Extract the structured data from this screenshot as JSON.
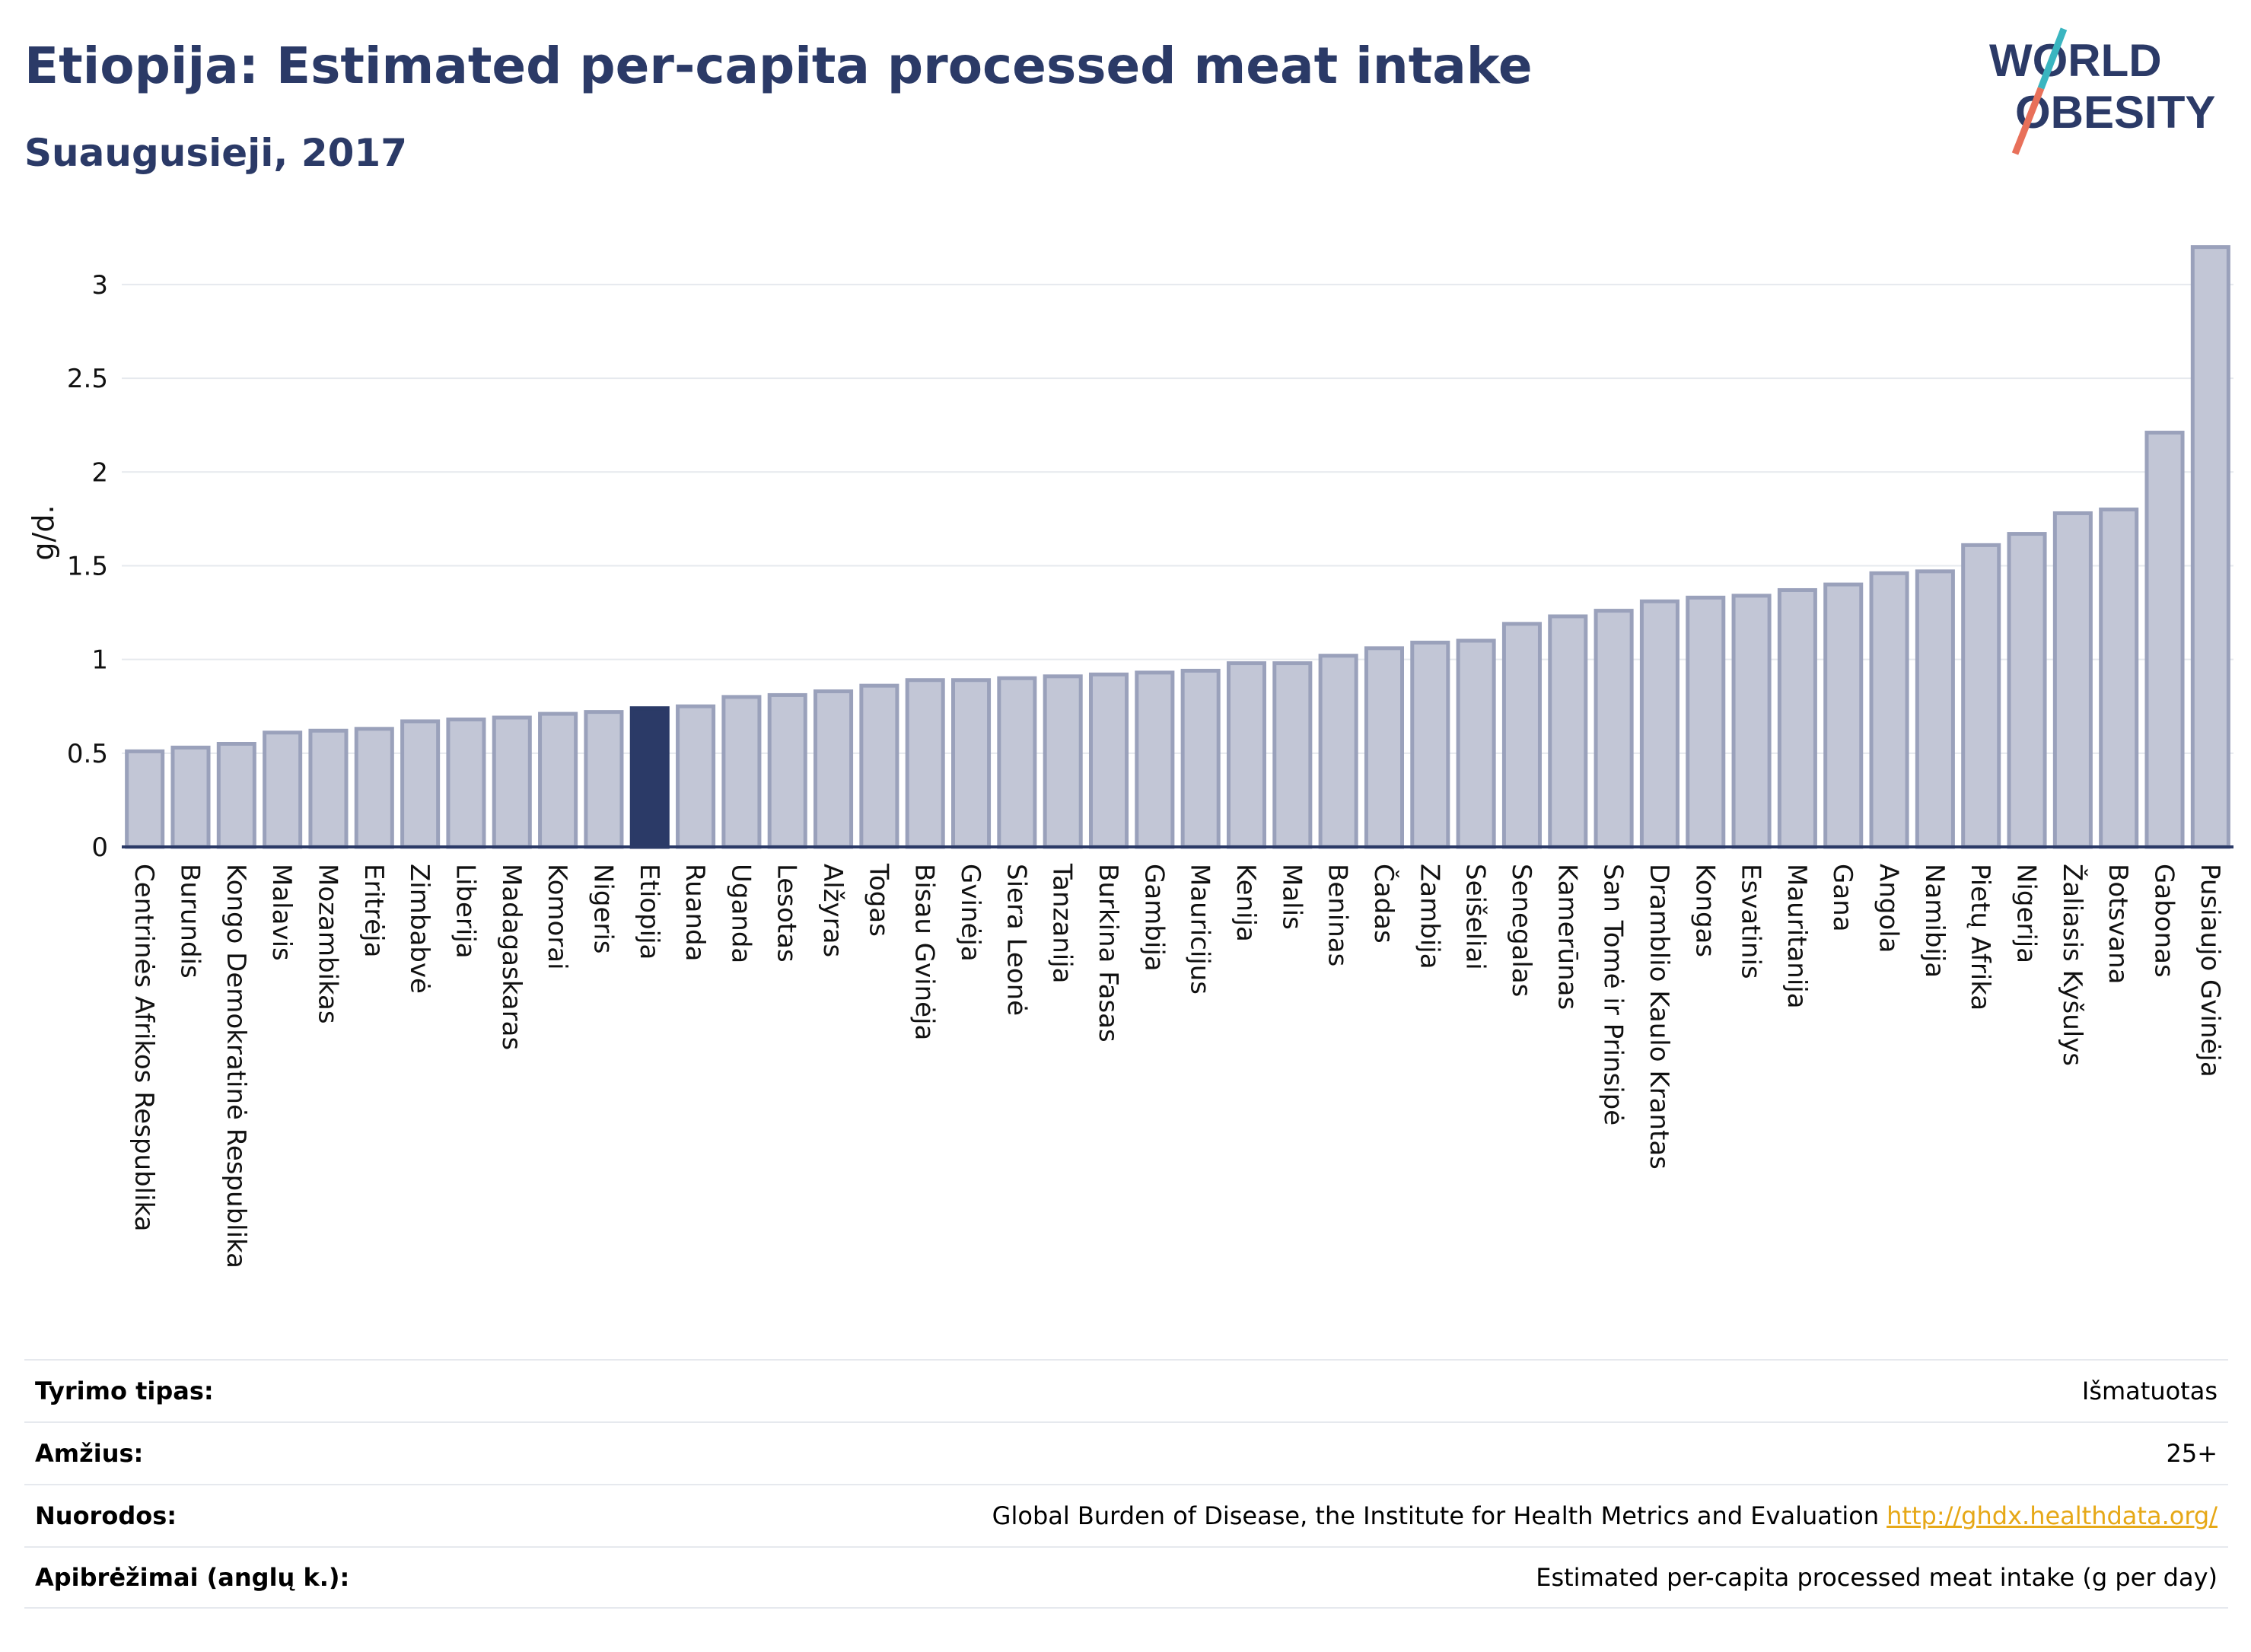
{
  "header": {
    "title": "Etiopija: Estimated per-capita processed meat intake",
    "subtitle": "Suaugusieji, 2017"
  },
  "logo": {
    "line1": "WORLD",
    "line2": "OBESITY",
    "colors": {
      "text": "#2b3a67",
      "slash_top": "#3ab5c0",
      "slash_bottom": "#e8705a"
    }
  },
  "colors": {
    "bar": "#c2c6d6",
    "bar_stroke": "#9aa1bb",
    "highlight": "#2b3a67",
    "grid": "#e6e9ee",
    "axis": "#2b3a67"
  },
  "chart_data": {
    "type": "bar",
    "ylabel": "g/d.",
    "ylim": [
      0,
      3.3
    ],
    "yticks": [
      0,
      0.5,
      1,
      1.5,
      2,
      2.5,
      3
    ],
    "ytick_labels": [
      "0",
      "0.5",
      "1",
      "1.5",
      "2",
      "2.5",
      "3"
    ],
    "grid": true,
    "highlight": "Etiopija",
    "categories": [
      "Centrinės Afrikos Respublika",
      "Burundis",
      "Kongo Demokratinė Respublika",
      "Malavis",
      "Mozambikas",
      "Eritrėja",
      "Zimbabvė",
      "Liberija",
      "Madagaskaras",
      "Komorai",
      "Nigeris",
      "Etiopija",
      "Ruanda",
      "Uganda",
      "Lesotas",
      "Alžyras",
      "Togas",
      "Bisau Gvinėja",
      "Gvinėja",
      "Siera Leonė",
      "Tanzanija",
      "Burkina Fasas",
      "Gambija",
      "Mauricijus",
      "Kenija",
      "Malis",
      "Beninas",
      "Čadas",
      "Zambija",
      "Seišeliai",
      "Senegalas",
      "Kamerūnas",
      "San Tomė ir Prinsipė",
      "Dramblio Kaulo Krantas",
      "Kongas",
      "Esvatinis",
      "Mauritanija",
      "Gana",
      "Angola",
      "Namibija",
      "Pietų Afrika",
      "Nigerija",
      "Žaliasis Kyšulys",
      "Botsvana",
      "Gabonas",
      "Pusiaujo Gvinėja"
    ],
    "values": [
      0.51,
      0.53,
      0.55,
      0.61,
      0.62,
      0.63,
      0.67,
      0.68,
      0.69,
      0.71,
      0.72,
      0.74,
      0.75,
      0.8,
      0.81,
      0.83,
      0.86,
      0.89,
      0.89,
      0.9,
      0.91,
      0.92,
      0.93,
      0.94,
      0.98,
      0.98,
      1.02,
      1.06,
      1.09,
      1.1,
      1.19,
      1.23,
      1.26,
      1.31,
      1.33,
      1.34,
      1.37,
      1.4,
      1.46,
      1.47,
      1.61,
      1.67,
      1.78,
      1.8,
      2.21,
      3.2
    ]
  },
  "info": [
    {
      "key": "Tyrimo tipas:",
      "value": "Išmatuotas"
    },
    {
      "key": "Amžius:",
      "value": "25+"
    },
    {
      "key": "Nuorodos:",
      "value": "Global Burden of Disease, the Institute for Health Metrics and Evaluation",
      "link": "http://ghdx.healthdata.org/"
    },
    {
      "key": "Apibrėžimai (anglų k.):",
      "value": "Estimated per-capita processed meat intake (g per day)"
    }
  ]
}
